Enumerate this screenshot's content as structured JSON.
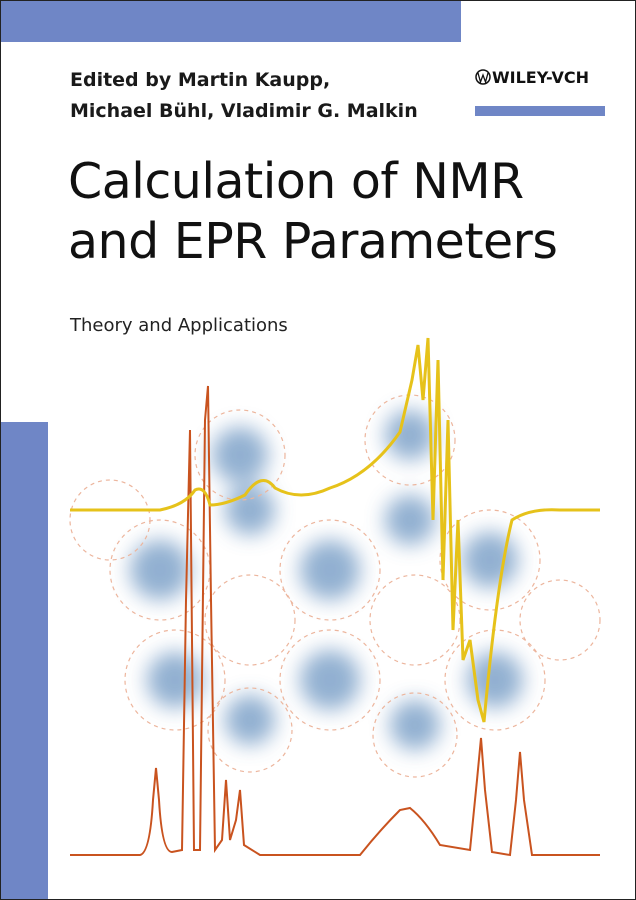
{
  "editors": [
    "Edited by Martin Kaupp,",
    "Michael Bühl, Vladimir G. Malkin"
  ],
  "publisher": "WILEY-VCH",
  "title": [
    "Calculation of NMR",
    "and EPR Parameters"
  ],
  "subtitle": "Theory and Applications"
}
